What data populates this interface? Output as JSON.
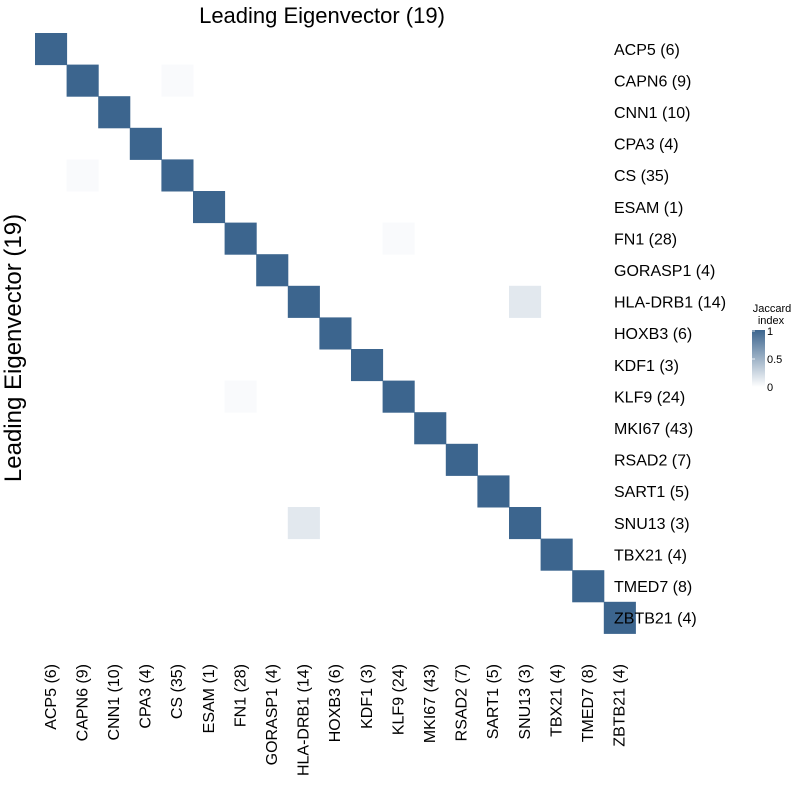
{
  "chart_data": {
    "type": "heatmap",
    "title": "Leading Eigenvector (19)",
    "ylabel": "Leading Eigenvector (19)",
    "xlabel": "",
    "categories": [
      "ACP5 (6)",
      "CAPN6 (9)",
      "CNN1 (10)",
      "CPA3 (4)",
      "CS (35)",
      "ESAM (1)",
      "FN1 (28)",
      "GORASP1 (4)",
      "HLA-DRB1 (14)",
      "HOXB3 (6)",
      "KDF1 (3)",
      "KLF9 (24)",
      "MKI67 (43)",
      "RSAD2 (7)",
      "SART1 (5)",
      "SNU13 (3)",
      "TBX21 (4)",
      "TMED7 (8)",
      "ZBTB21 (4)"
    ],
    "diagonal_value": 1,
    "off_diagonal": [
      {
        "row": "CAPN6 (9)",
        "col": "CS (35)",
        "value": 0.03
      },
      {
        "row": "CS (35)",
        "col": "CAPN6 (9)",
        "value": 0.03
      },
      {
        "row": "FN1 (28)",
        "col": "KLF9 (24)",
        "value": 0.03
      },
      {
        "row": "KLF9 (24)",
        "col": "FN1 (28)",
        "value": 0.03
      },
      {
        "row": "HLA-DRB1 (14)",
        "col": "SNU13 (3)",
        "value": 0.15
      },
      {
        "row": "SNU13 (3)",
        "col": "HLA-DRB1 (14)",
        "value": 0.15
      }
    ],
    "value_range": [
      0,
      1
    ],
    "legend": {
      "title_lines": [
        "Jaccard",
        "index"
      ],
      "ticks": [
        {
          "value": 1,
          "label": "1"
        },
        {
          "value": 0.5,
          "label": "0.5"
        },
        {
          "value": 0,
          "label": "0"
        }
      ],
      "position": "right"
    },
    "color_low": "#ffffff",
    "color_high": "#3c658e",
    "grid": false
  }
}
